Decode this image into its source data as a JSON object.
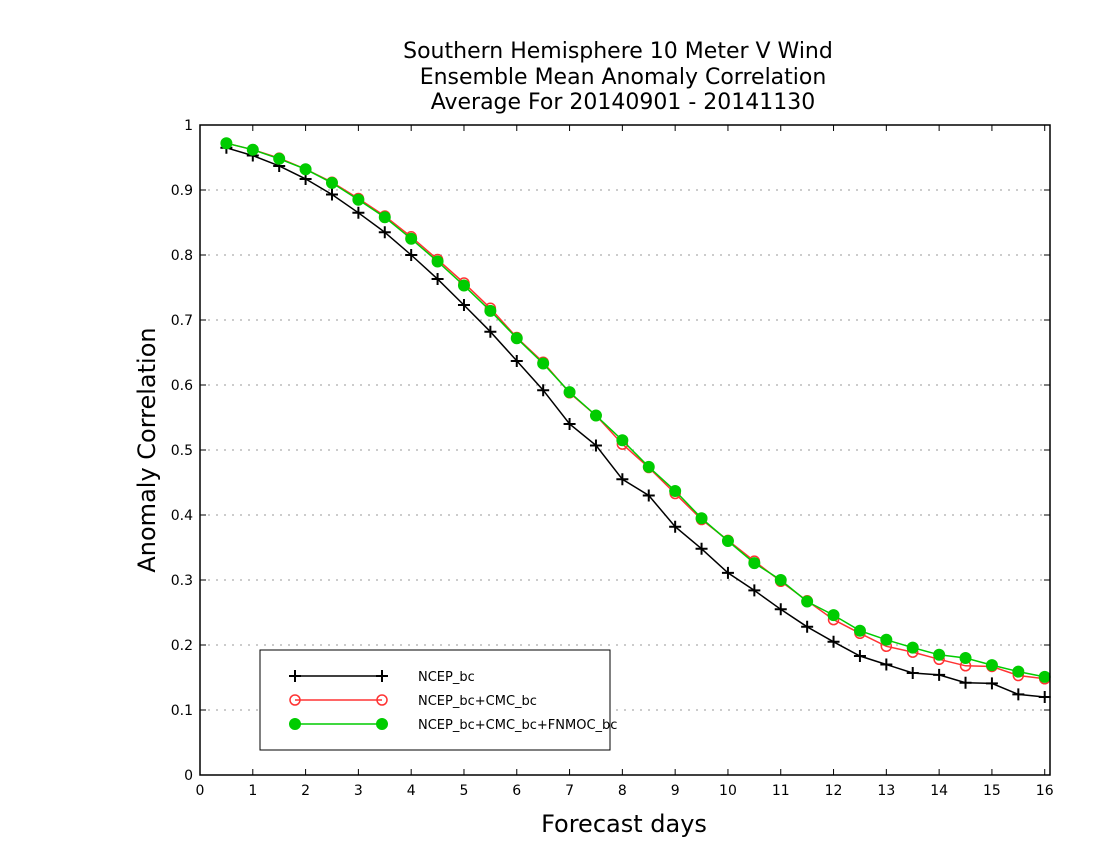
{
  "chart_data": {
    "type": "line",
    "title": "Southern Hemisphere 10 Meter V Wind",
    "subtitle": "Ensemble Mean Anomaly Correlation",
    "subtitle2": "Average For 20140901 - 20141130",
    "xlabel": "Forecast days",
    "ylabel": "Anomaly Correlation",
    "xlim": [
      0,
      16.1
    ],
    "ylim": [
      0,
      1
    ],
    "xticks": [
      "0",
      "1",
      "2",
      "3",
      "4",
      "5",
      "6",
      "7",
      "8",
      "9",
      "10",
      "11",
      "12",
      "13",
      "14",
      "15",
      "16"
    ],
    "yticks": [
      "0",
      "0.1",
      "0.2",
      "0.3",
      "0.4",
      "0.5",
      "0.6",
      "0.7",
      "0.8",
      "0.9",
      "1"
    ],
    "grid": "horizontal dotted",
    "legend_position": "bottom-left",
    "x": [
      0.5,
      1,
      1.5,
      2,
      2.5,
      3,
      3.5,
      4,
      4.5,
      5,
      5.5,
      6,
      6.5,
      7,
      7.5,
      8,
      8.5,
      9,
      9.5,
      10,
      10.5,
      11,
      11.5,
      12,
      12.5,
      13,
      13.5,
      14,
      14.5,
      15,
      15.5,
      16
    ],
    "series": [
      {
        "name": "NCEP_bc",
        "color": "#000000",
        "marker": "plus",
        "values": [
          0.965,
          0.953,
          0.937,
          0.917,
          0.893,
          0.865,
          0.835,
          0.8,
          0.763,
          0.723,
          0.682,
          0.637,
          0.592,
          0.54,
          0.507,
          0.455,
          0.43,
          0.382,
          0.348,
          0.311,
          0.284,
          0.255,
          0.228,
          0.205,
          0.183,
          0.17,
          0.157,
          0.154,
          0.142,
          0.141,
          0.124,
          0.12
        ]
      },
      {
        "name": "NCEP_bc+CMC_bc",
        "color": "#ff3333",
        "marker": "open-circle",
        "values": [
          0.972,
          0.962,
          0.949,
          0.932,
          0.912,
          0.887,
          0.86,
          0.828,
          0.793,
          0.757,
          0.718,
          0.673,
          0.635,
          0.588,
          0.553,
          0.509,
          0.473,
          0.433,
          0.393,
          0.361,
          0.329,
          0.298,
          0.268,
          0.239,
          0.218,
          0.198,
          0.189,
          0.178,
          0.168,
          0.167,
          0.153,
          0.148
        ]
      },
      {
        "name": "NCEP_bc+CMC_bc+FNMOC_bc",
        "color": "#00cc00",
        "marker": "filled-circle",
        "values": [
          0.972,
          0.962,
          0.948,
          0.932,
          0.911,
          0.885,
          0.858,
          0.825,
          0.79,
          0.753,
          0.714,
          0.672,
          0.633,
          0.589,
          0.553,
          0.515,
          0.474,
          0.437,
          0.395,
          0.36,
          0.326,
          0.3,
          0.267,
          0.246,
          0.222,
          0.208,
          0.196,
          0.185,
          0.18,
          0.169,
          0.159,
          0.151
        ]
      }
    ]
  }
}
